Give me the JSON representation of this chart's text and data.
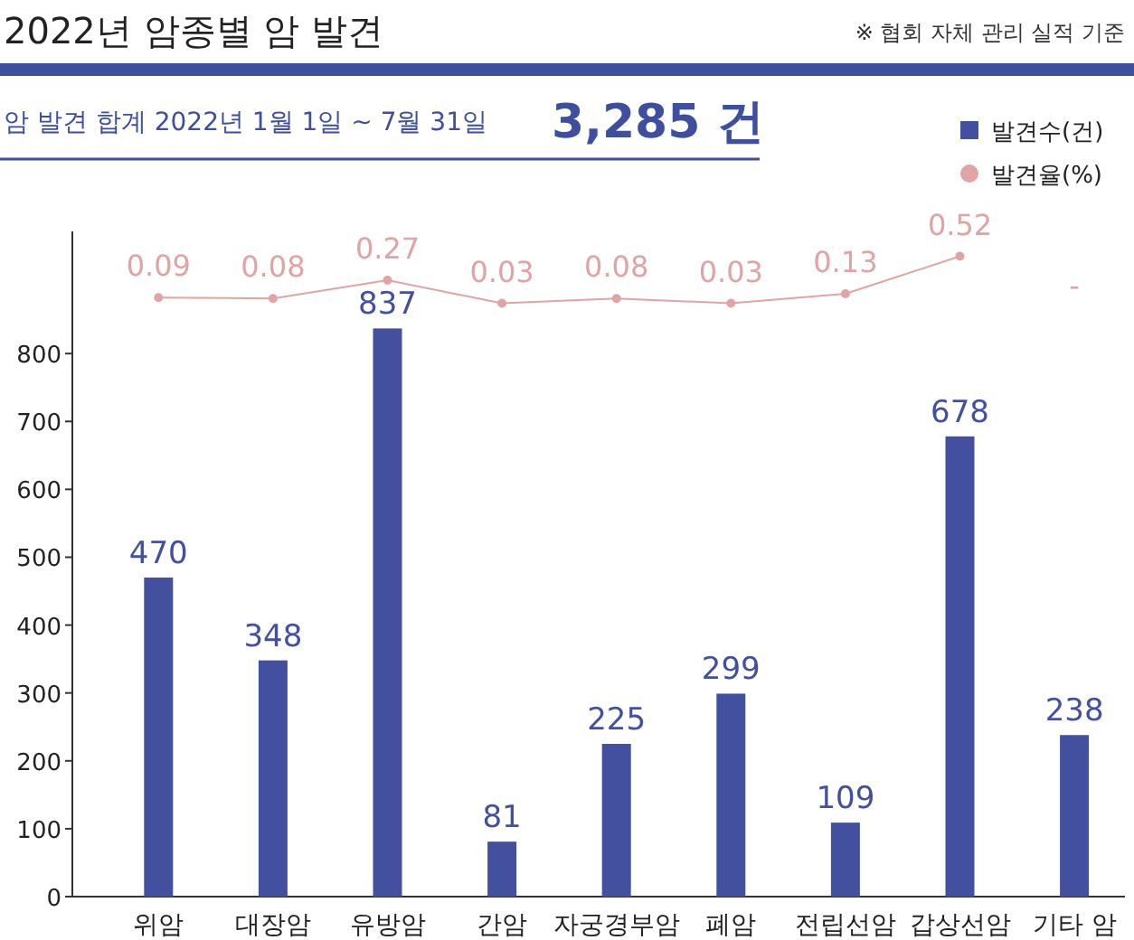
{
  "chart_data": {
    "type": "bar",
    "title": "2022년 암종별 암 발견",
    "subtitle": "암 발견 합계  2022년 1월 1일 ~ 7월 31일",
    "annotations": [
      "※ 협회 자체 관리 실적 기준",
      "3,285 건"
    ],
    "categories": [
      "위암",
      "대장암",
      "유방암",
      "간암",
      "자궁경부암",
      "폐암",
      "전립선암",
      "갑상선암",
      "기타 암"
    ],
    "series": [
      {
        "name": "발견수(건)",
        "color": "#4350a0",
        "values": [
          470,
          348,
          837,
          81,
          225,
          299,
          109,
          678,
          238
        ]
      },
      {
        "name": "발견율(%)",
        "type": "line",
        "axis": "y2",
        "color": "#e0a4a4",
        "marker": "circle",
        "values": [
          0.09,
          0.08,
          0.27,
          0.03,
          0.08,
          0.03,
          0.13,
          0.52,
          null
        ],
        "value_labels": [
          "0.09",
          "0.08",
          "0.27",
          "0.03",
          "0.08",
          "0.03",
          "0.13",
          "0.52",
          "-"
        ]
      }
    ],
    "data_labels": true,
    "ylim": [
      0,
      980
    ],
    "yticks": [
      0,
      100,
      200,
      300,
      400,
      500,
      600,
      700,
      800
    ],
    "y2lim": [
      -6.16,
      0.78
    ],
    "grid": false,
    "legend": "top right"
  }
}
